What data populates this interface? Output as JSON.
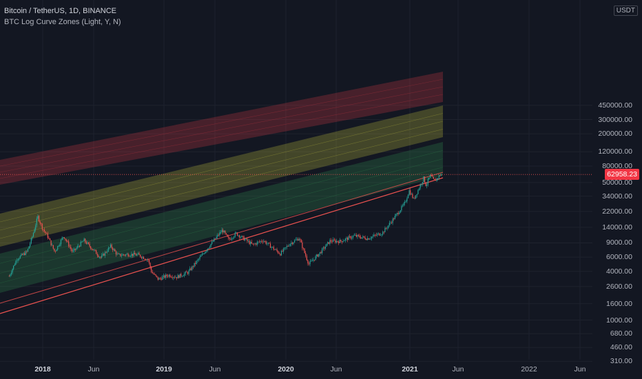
{
  "legend": {
    "symbol": "Bitcoin / TetherUS, 1D, BINANCE",
    "indicator": "BTC Log Curve Zones (Light, Y, N)"
  },
  "price_axis": {
    "currency": "USDT",
    "last_price": "62958.23",
    "ticks": [
      "450000.00",
      "300000.00",
      "200000.00",
      "120000.00",
      "80000.00",
      "50000.00",
      "34000.00",
      "22000.00",
      "14000.00",
      "9000.00",
      "6000.00",
      "4000.00",
      "2600.00",
      "1600.00",
      "1000.00",
      "680.00",
      "460.00",
      "310.00"
    ]
  },
  "time_axis": {
    "ticks": [
      {
        "label": "2018",
        "bold": true
      },
      {
        "label": "Jun",
        "bold": false
      },
      {
        "label": "2019",
        "bold": true
      },
      {
        "label": "Jun",
        "bold": false
      },
      {
        "label": "2020",
        "bold": true
      },
      {
        "label": "Jun",
        "bold": false
      },
      {
        "label": "2021",
        "bold": true
      },
      {
        "label": "Jun",
        "bold": false
      },
      {
        "label": "2022",
        "bold": false
      },
      {
        "label": "Jun",
        "bold": false
      }
    ]
  },
  "colors": {
    "background": "#131722",
    "up": "#26a69a",
    "down": "#ef5350",
    "zone_red": "#b2333f",
    "zone_yellow": "#a7a73a",
    "zone_green": "#2f7a4a",
    "support_line": "#ef5350",
    "last_price_bg": "#f23645"
  },
  "chart_data": {
    "type": "line",
    "scale": "log",
    "ylim": [
      310,
      450000
    ],
    "xlim": [
      "2017-09-15",
      "2022-09-01"
    ],
    "last_close": 62958.23,
    "series": [
      {
        "points": [
          [
            "2017-09-22",
            3500
          ],
          [
            "2017-10-15",
            5700
          ],
          [
            "2017-11-15",
            7000
          ],
          [
            "2017-12-01",
            10800
          ],
          [
            "2017-12-17",
            19000
          ],
          [
            "2018-01-01",
            13500
          ],
          [
            "2018-01-15",
            11000
          ],
          [
            "2018-02-06",
            7000
          ],
          [
            "2018-03-05",
            11000
          ],
          [
            "2018-04-01",
            6900
          ],
          [
            "2018-05-05",
            9700
          ],
          [
            "2018-06-25",
            5900
          ],
          [
            "2018-07-25",
            8200
          ],
          [
            "2018-08-15",
            6300
          ],
          [
            "2018-09-15",
            6500
          ],
          [
            "2018-10-15",
            6400
          ],
          [
            "2018-11-14",
            5600
          ],
          [
            "2018-11-25",
            3900
          ],
          [
            "2018-12-15",
            3200
          ],
          [
            "2019-01-15",
            3600
          ],
          [
            "2019-02-08",
            3400
          ],
          [
            "2019-03-15",
            3900
          ],
          [
            "2019-04-05",
            5000
          ],
          [
            "2019-05-15",
            8000
          ],
          [
            "2019-06-26",
            13000
          ],
          [
            "2019-07-15",
            9800
          ],
          [
            "2019-08-06",
            11800
          ],
          [
            "2019-09-25",
            8500
          ],
          [
            "2019-10-26",
            9700
          ],
          [
            "2019-12-17",
            6600
          ],
          [
            "2020-01-15",
            8800
          ],
          [
            "2020-02-12",
            10300
          ],
          [
            "2020-03-12",
            4900
          ],
          [
            "2020-04-15",
            6800
          ],
          [
            "2020-05-15",
            9500
          ],
          [
            "2020-06-15",
            9400
          ],
          [
            "2020-07-27",
            11000
          ],
          [
            "2020-09-05",
            10200
          ],
          [
            "2020-10-20",
            12000
          ],
          [
            "2020-11-25",
            18500
          ],
          [
            "2020-12-27",
            28000
          ],
          [
            "2021-01-08",
            40000
          ],
          [
            "2021-01-22",
            31000
          ],
          [
            "2021-02-21",
            57000
          ],
          [
            "2021-02-28",
            46000
          ],
          [
            "2021-03-13",
            61000
          ],
          [
            "2021-03-25",
            52000
          ],
          [
            "2021-04-14",
            63500
          ],
          [
            "2021-04-16",
            62958.23
          ]
        ]
      }
    ]
  }
}
